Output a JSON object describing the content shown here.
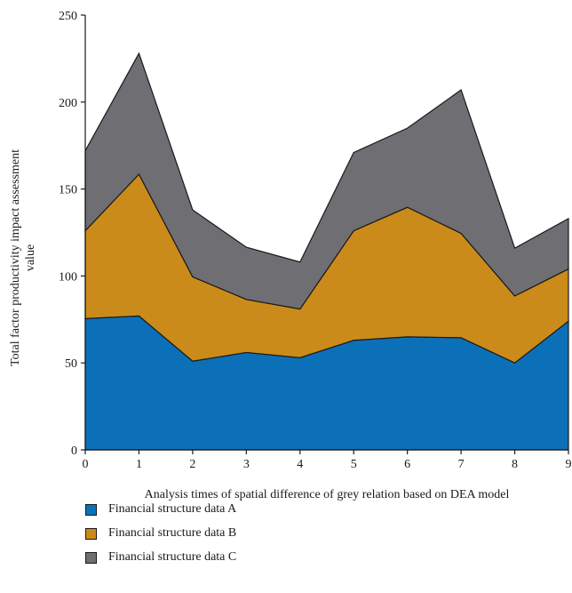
{
  "chart_data": {
    "type": "area",
    "stacked": true,
    "title": "",
    "xlabel": "Analysis times of spatial difference of grey relation based on DEA model",
    "ylabel": "Total factor productivity impact assessment value",
    "x": [
      0,
      1,
      2,
      3,
      4,
      5,
      6,
      7,
      8,
      9
    ],
    "xticks": [
      "0",
      "1",
      "2",
      "3",
      "4",
      "5",
      "6",
      "7",
      "8",
      "9"
    ],
    "yticks": [
      "0",
      "50",
      "100",
      "150",
      "200",
      "250"
    ],
    "xlim": [
      0,
      9
    ],
    "ylim": [
      0,
      250
    ],
    "grid": false,
    "legend_position": "bottom",
    "series": [
      {
        "name": "Financial structure data A",
        "color": "#0c70b8",
        "values": [
          75.5,
          77,
          51,
          56,
          53,
          63,
          65,
          64.5,
          50,
          74
        ]
      },
      {
        "name": "Financial structure data B",
        "color": "#cb8b1a",
        "values": [
          50.5,
          81.5,
          48.5,
          30.5,
          28,
          63,
          74.5,
          60,
          38.5,
          30
        ]
      },
      {
        "name": "Financial structure data C",
        "color": "#6e6e73",
        "values": [
          46,
          69.5,
          38.5,
          30,
          27,
          45,
          45.5,
          82.5,
          27.5,
          29
        ]
      }
    ]
  }
}
